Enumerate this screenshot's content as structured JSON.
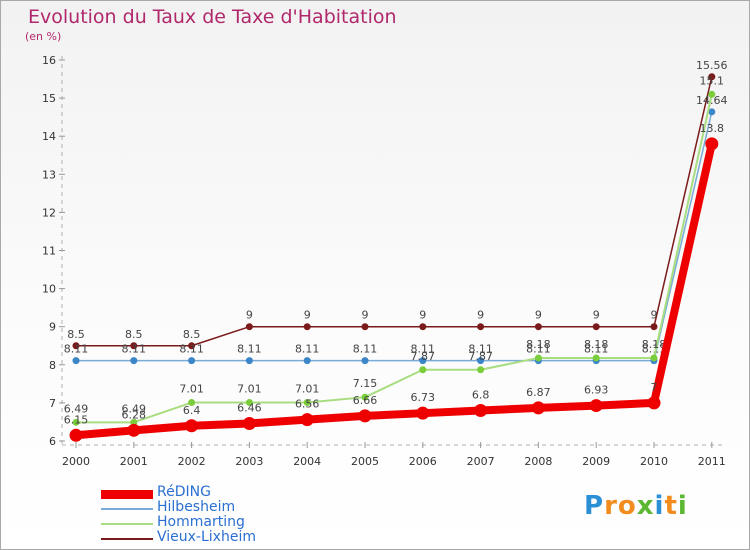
{
  "title": "Evolution du Taux de Taxe d'Habitation",
  "subtitle": "(en %)",
  "logo": {
    "letters": [
      "P",
      "r",
      "o",
      "x",
      "i",
      "t",
      "i"
    ],
    "colors": [
      "#2b8fd6",
      "#f28c1e",
      "#f28c1e",
      "#5cb832",
      "#2b8fd6",
      "#f28c1e",
      "#5cb832"
    ]
  },
  "chart_data": {
    "type": "line",
    "x": [
      "2000",
      "2001",
      "2002",
      "2003",
      "2004",
      "2005",
      "2006",
      "2007",
      "2008",
      "2009",
      "2010",
      "2011"
    ],
    "ylim": [
      6,
      16
    ],
    "yticks": [
      "6",
      "7",
      "8",
      "9",
      "10",
      "11",
      "12",
      "13",
      "14",
      "15",
      "16"
    ],
    "grid": false,
    "legend_position": "bottom-left",
    "series": [
      {
        "name": "Vieux-Lixheim",
        "color": "#7b1a1a",
        "values": [
          8.5,
          8.5,
          8.5,
          9,
          9,
          9,
          9,
          9,
          9,
          9,
          9,
          15.56
        ],
        "labels": [
          "8.5",
          "8.5",
          "8.5",
          "9",
          "9",
          "9",
          "9",
          "9",
          "9",
          "9",
          "9",
          "15.56"
        ]
      },
      {
        "name": "Hilbesheim",
        "color": "#3a86c8",
        "values": [
          8.11,
          8.11,
          8.11,
          8.11,
          8.11,
          8.11,
          8.11,
          8.11,
          8.11,
          8.11,
          8.11,
          14.64
        ],
        "labels": [
          "8.11",
          "8.11",
          "8.11",
          "8.11",
          "8.11",
          "8.11",
          "8.11",
          "8.11",
          "8.11",
          "8.11",
          "8.11",
          "14.64"
        ]
      },
      {
        "name": "Hommarting",
        "color": "#7ccd3c",
        "values": [
          6.49,
          6.49,
          7.01,
          7.01,
          7.01,
          7.15,
          7.87,
          7.87,
          8.18,
          8.18,
          8.18,
          15.1
        ],
        "labels": [
          "6.49",
          "6.49",
          "7.01",
          "7.01",
          "7.01",
          "7.15",
          "7.87",
          "7.87",
          "8.18",
          "8.18",
          "8.18",
          "15.1"
        ]
      },
      {
        "name": "RéDING",
        "color": "#ee0000",
        "values": [
          6.15,
          6.28,
          6.4,
          6.46,
          6.56,
          6.66,
          6.73,
          6.8,
          6.87,
          6.93,
          7,
          13.8
        ],
        "labels": [
          "6.15",
          "6.28",
          "6.4",
          "6.46",
          "6.56",
          "6.66",
          "6.73",
          "6.8",
          "6.87",
          "6.93",
          "7",
          "13.8"
        ]
      }
    ],
    "legend_order": [
      "RéDING",
      "Hilbesheim",
      "Hommarting",
      "Vieux-Lixheim"
    ]
  }
}
